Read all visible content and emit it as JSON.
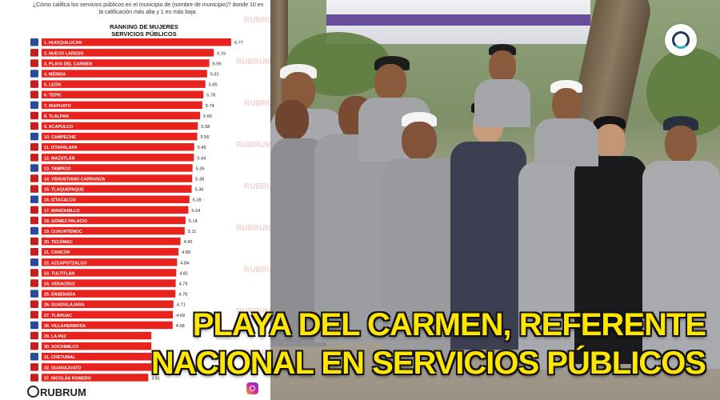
{
  "question": "¿Cómo califica los servicios públicos en el municipio de (nombre de municipio)? donde 10 es la calificación más alta y 1 es más baja.",
  "watermark": "RUBRUM",
  "headline": {
    "line1": "PLAYA DEL CARMEN,  REFERENTE",
    "line2": "NACIONAL EN SERVICIOS PÚBLICOS"
  },
  "colors": {
    "bar": "#e8231e",
    "headline": "#ffe600",
    "first_bar": "#e8231e"
  },
  "chart_data": {
    "type": "bar",
    "orientation": "horizontal",
    "title": "RANKING DE MUJERES\nSERVICIOS PÚBLICOS",
    "categories": [
      "1. HUIXQUILUCAN",
      "2. NUEVO LAREDO",
      "3. PLAYA DEL CARMEN",
      "4. MÉRIDA",
      "5. LEÓN",
      "6. TEPIC",
      "7. IRAPUATO",
      "8. TLALPAN",
      "9. ACAPULCO",
      "10. CAMPECHE",
      "11. IZTAPALAPA",
      "12. MAZATLÁN",
      "13. TAMPICO",
      "14. VENUSTIANO CARRANZA",
      "15. TLAQUEPAQUE",
      "16. IZTACALCO",
      "17. MANZANILLO",
      "18. GÓMEZ PALACIO",
      "19. CUAUHTÉMOC",
      "20. TECÁMAC",
      "21. CANCÚN",
      "22. AZCAPOTZALCO",
      "23. TULTITLÁN",
      "24. VERACRUZ",
      "25. ENSENADA",
      "26. GUADALAJARA",
      "27. TLÁHUAC",
      "28. VILLAHERMOSA",
      "29. LA PAZ",
      "30. XOCHIMILCO",
      "31. CHETUMAL",
      "32. GUANAJUATO",
      "37. NICOLÁS ROMERO"
    ],
    "values": [
      6.77,
      6.15,
      5.99,
      5.91,
      5.85,
      5.78,
      5.74,
      5.66,
      5.58,
      5.56,
      5.45,
      5.44,
      5.39,
      5.38,
      5.36,
      5.28,
      5.24,
      5.14,
      5.11,
      4.96,
      4.89,
      4.84,
      4.81,
      4.79,
      4.78,
      4.71,
      4.69,
      4.68,
      null,
      null,
      null,
      null,
      3.81
    ],
    "xlim": [
      0,
      7
    ],
    "grid": false,
    "legend": "none"
  }
}
